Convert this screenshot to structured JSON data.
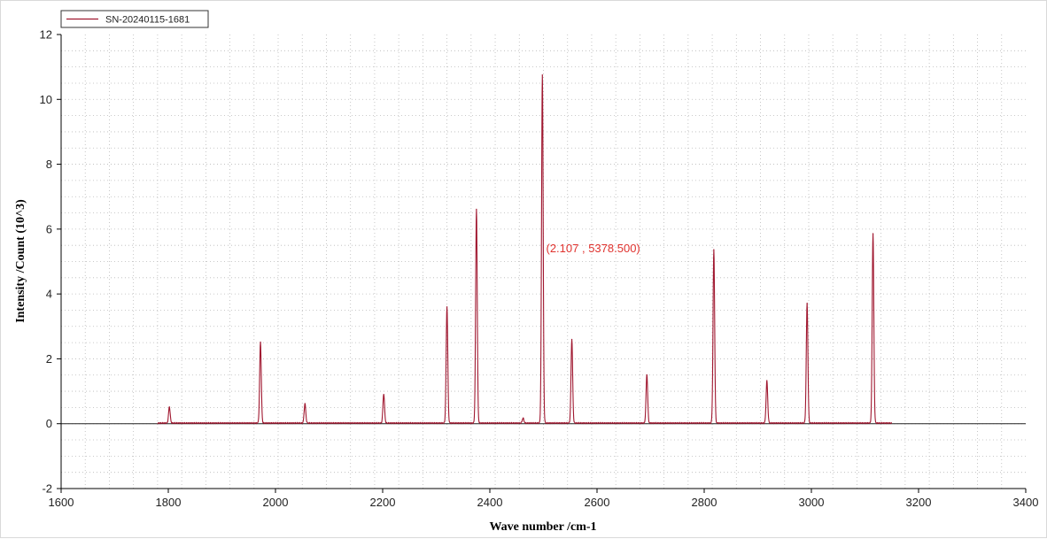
{
  "chart_data": {
    "type": "line",
    "title": "",
    "xlabel": "Wave number /cm-1",
    "ylabel": "Intensity /Count (10^3)",
    "xlim": [
      1600,
      3400
    ],
    "ylim": [
      -2,
      12
    ],
    "x_ticks": [
      "1600",
      "1800",
      "2000",
      "2200",
      "2400",
      "2600",
      "2800",
      "3000",
      "3200",
      "3400"
    ],
    "y_ticks": [
      "-2",
      "0",
      "2",
      "4",
      "6",
      "8",
      "10",
      "12"
    ],
    "grid": true,
    "legend_position": "top-left",
    "series": [
      {
        "name": "SN-20240115-1681",
        "color": "#a01830",
        "x_range": [
          1780,
          3150
        ],
        "baseline": 0.02,
        "peaks": [
          {
            "x": 1802,
            "y": 0.5
          },
          {
            "x": 1972,
            "y": 2.5
          },
          {
            "x": 2055,
            "y": 0.6
          },
          {
            "x": 2202,
            "y": 0.9
          },
          {
            "x": 2320,
            "y": 3.6
          },
          {
            "x": 2375,
            "y": 6.6
          },
          {
            "x": 2462,
            "y": 0.15
          },
          {
            "x": 2498,
            "y": 10.75
          },
          {
            "x": 2553,
            "y": 2.6
          },
          {
            "x": 2693,
            "y": 1.5
          },
          {
            "x": 2818,
            "y": 5.35
          },
          {
            "x": 2917,
            "y": 1.3
          },
          {
            "x": 2992,
            "y": 3.7
          },
          {
            "x": 3115,
            "y": 5.85
          }
        ]
      }
    ],
    "annotation": {
      "text": "(2.107 , 5378.500)",
      "x": 2500,
      "y": 5.4,
      "color": "#e0322e"
    }
  }
}
